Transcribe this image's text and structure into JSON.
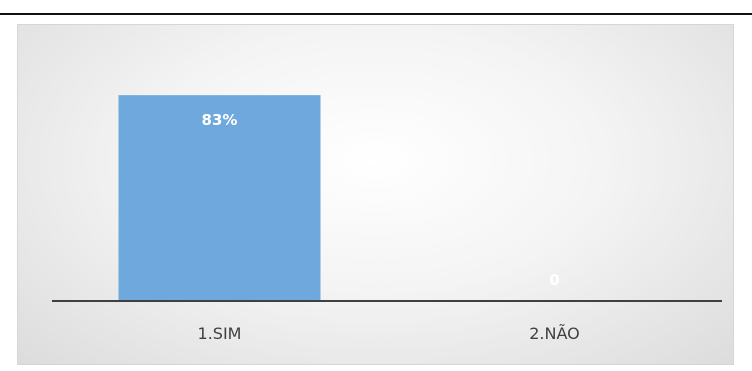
{
  "chart_data": {
    "type": "bar",
    "categories": [
      "1.SIM",
      "2.NÃO"
    ],
    "values": [
      83,
      0
    ],
    "data_labels": [
      "83%",
      "0"
    ],
    "ylim": [
      0,
      100
    ],
    "grid": false,
    "title": "",
    "xlabel": "",
    "ylabel": ""
  },
  "colors": {
    "bar": "#6fa8dc",
    "axis": "#404040",
    "data_label": "#ffffff",
    "rule": "#111111"
  }
}
